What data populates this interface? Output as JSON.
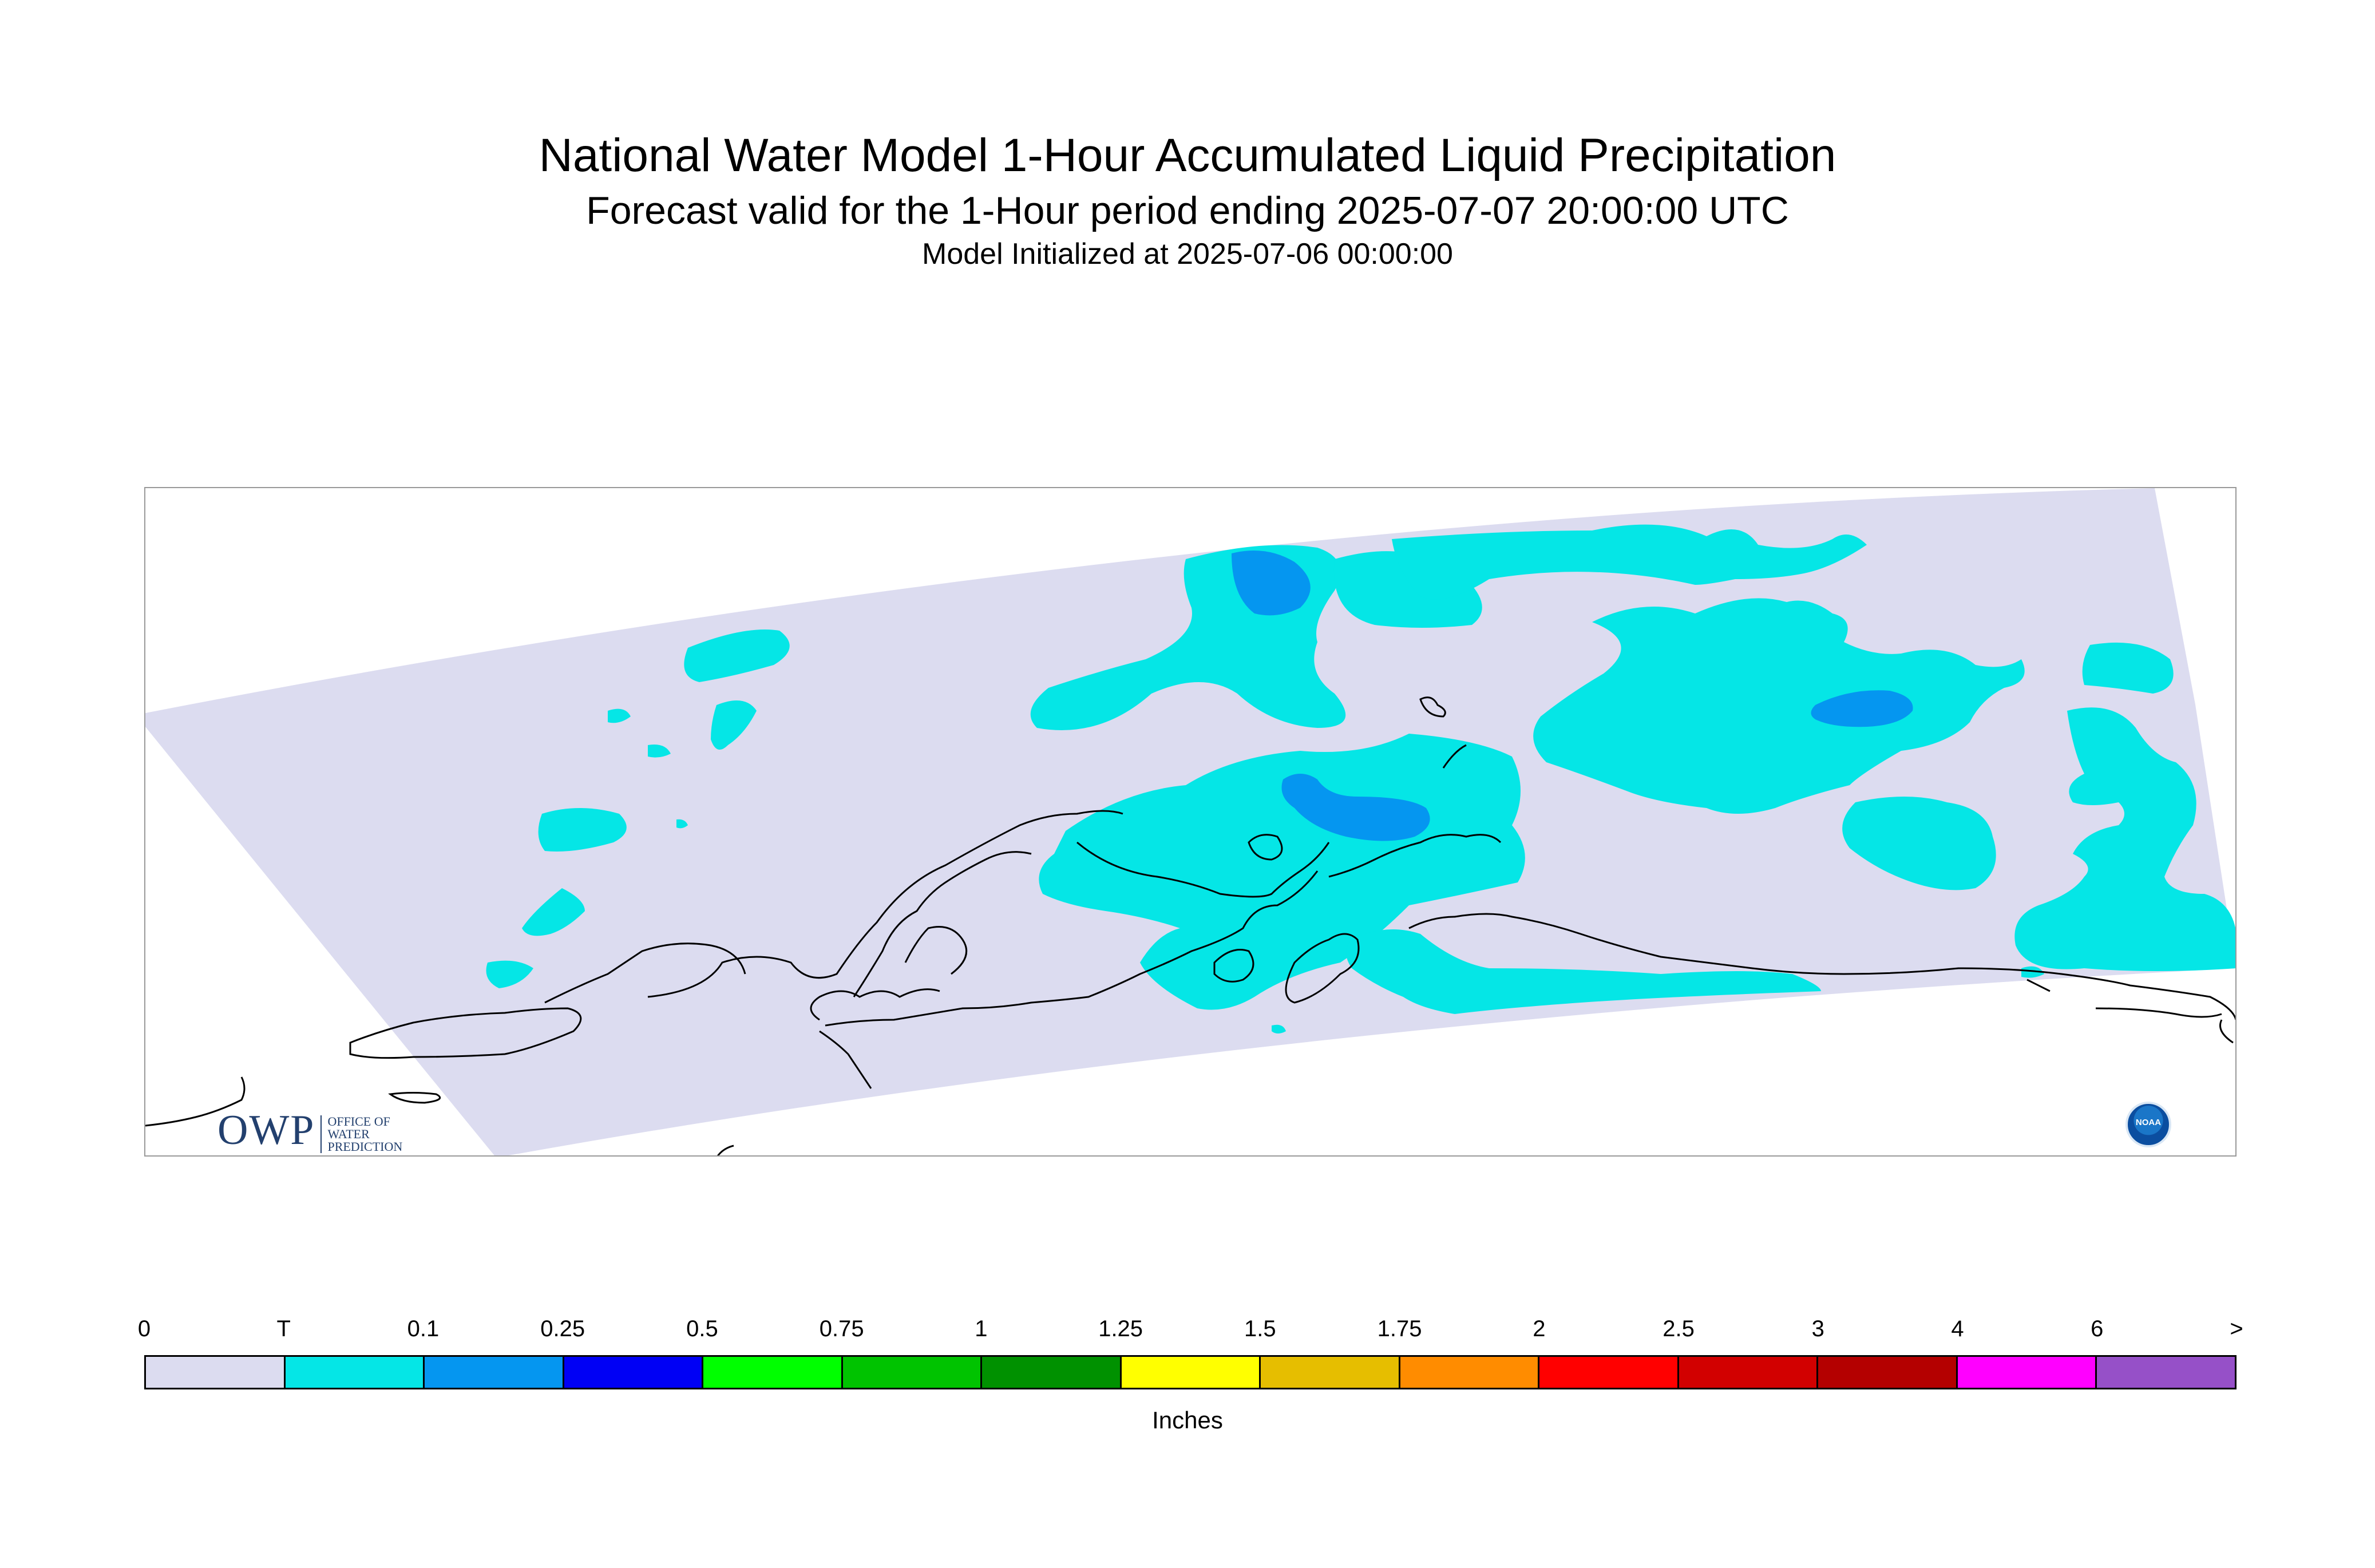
{
  "titles": {
    "main": "National Water Model 1-Hour Accumulated Liquid Precipitation",
    "forecast": "Forecast valid for the 1-Hour period ending 2025-07-07 20:00:00 UTC",
    "initialized": "Model Initialized at 2025-07-06 00:00:00"
  },
  "legend": {
    "breaks": [
      "0",
      "T",
      "0.1",
      "0.25",
      "0.5",
      "0.75",
      "1",
      "1.25",
      "1.5",
      "1.75",
      "2",
      "2.5",
      "3",
      "4",
      "6",
      ">"
    ],
    "colors": [
      "#dcdcf0",
      "#05e6e6",
      "#0596f0",
      "#0000f5",
      "#00ff00",
      "#00c300",
      "#009100",
      "#ffff00",
      "#e6be00",
      "#ff8c00",
      "#ff0000",
      "#d20000",
      "#b40000",
      "#ff00ff",
      "#9650c8"
    ],
    "units": "Inches"
  },
  "logos": {
    "owp_mark": "OWP",
    "owp_text": [
      "OFFICE OF",
      "WATER",
      "PREDICTION"
    ],
    "noaa": "NOAA"
  },
  "map_colors": {
    "domain": "#dcdcf0",
    "trace": "#05e6e6",
    "light": "#0596f0",
    "coast": "#000000"
  }
}
